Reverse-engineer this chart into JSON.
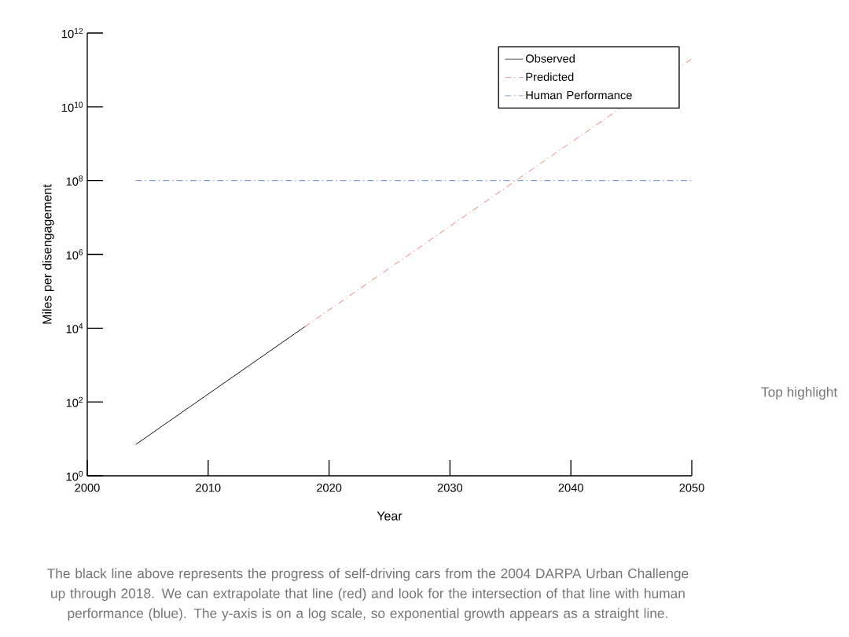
{
  "chart_data": {
    "type": "line",
    "xlabel": "Year",
    "ylabel": "Miles per disengagement",
    "series": [
      {
        "name": "Observed",
        "color": "#000000",
        "x": [
          2004,
          2018
        ],
        "values": [
          7,
          11000
        ],
        "line_style": "solid"
      },
      {
        "name": "Predicted",
        "color": "#e8776b",
        "x": [
          2018,
          2050
        ],
        "values": [
          11000,
          200000000000
        ],
        "line_style": "dashed"
      },
      {
        "name": "Human Performance",
        "color": "#5b7fd6",
        "x": [
          2004,
          2050
        ],
        "values": [
          100000000,
          100000000
        ],
        "line_style": "dashed"
      }
    ],
    "log": "y",
    "xlim": [
      2000,
      2050
    ],
    "ylim": [
      1,
      1000000000000
    ],
    "xticks": [
      2000,
      2010,
      2020,
      2030,
      2040,
      2050
    ],
    "yticks": [
      {
        "value": 1,
        "label": "10$^{0}$"
      },
      {
        "value": 100,
        "label": "10$^{2}$"
      },
      {
        "value": 10000,
        "label": "10$^{4}$"
      },
      {
        "value": 1000000,
        "label": "10$^{6}$"
      },
      {
        "value": 100000000,
        "label": "10$^{8}$"
      },
      {
        "value": 10000000000,
        "label": "10$^{10}$"
      },
      {
        "value": 1000000000000,
        "label": "10$^{12}$"
      }
    ],
    "grid": false,
    "legend": "top right",
    "marker": "none",
    "annotations": [
      "The black line above represents the progress of self-driving cars from the 2004 DARPA Urban Challenge up through 2018. We can extrapolate that line (red) and look for the intersection of that line with human performance (blue). The y-axis is on a log scale, so exponential growth appears as a straight line.",
      "Top highlight"
    ]
  }
}
